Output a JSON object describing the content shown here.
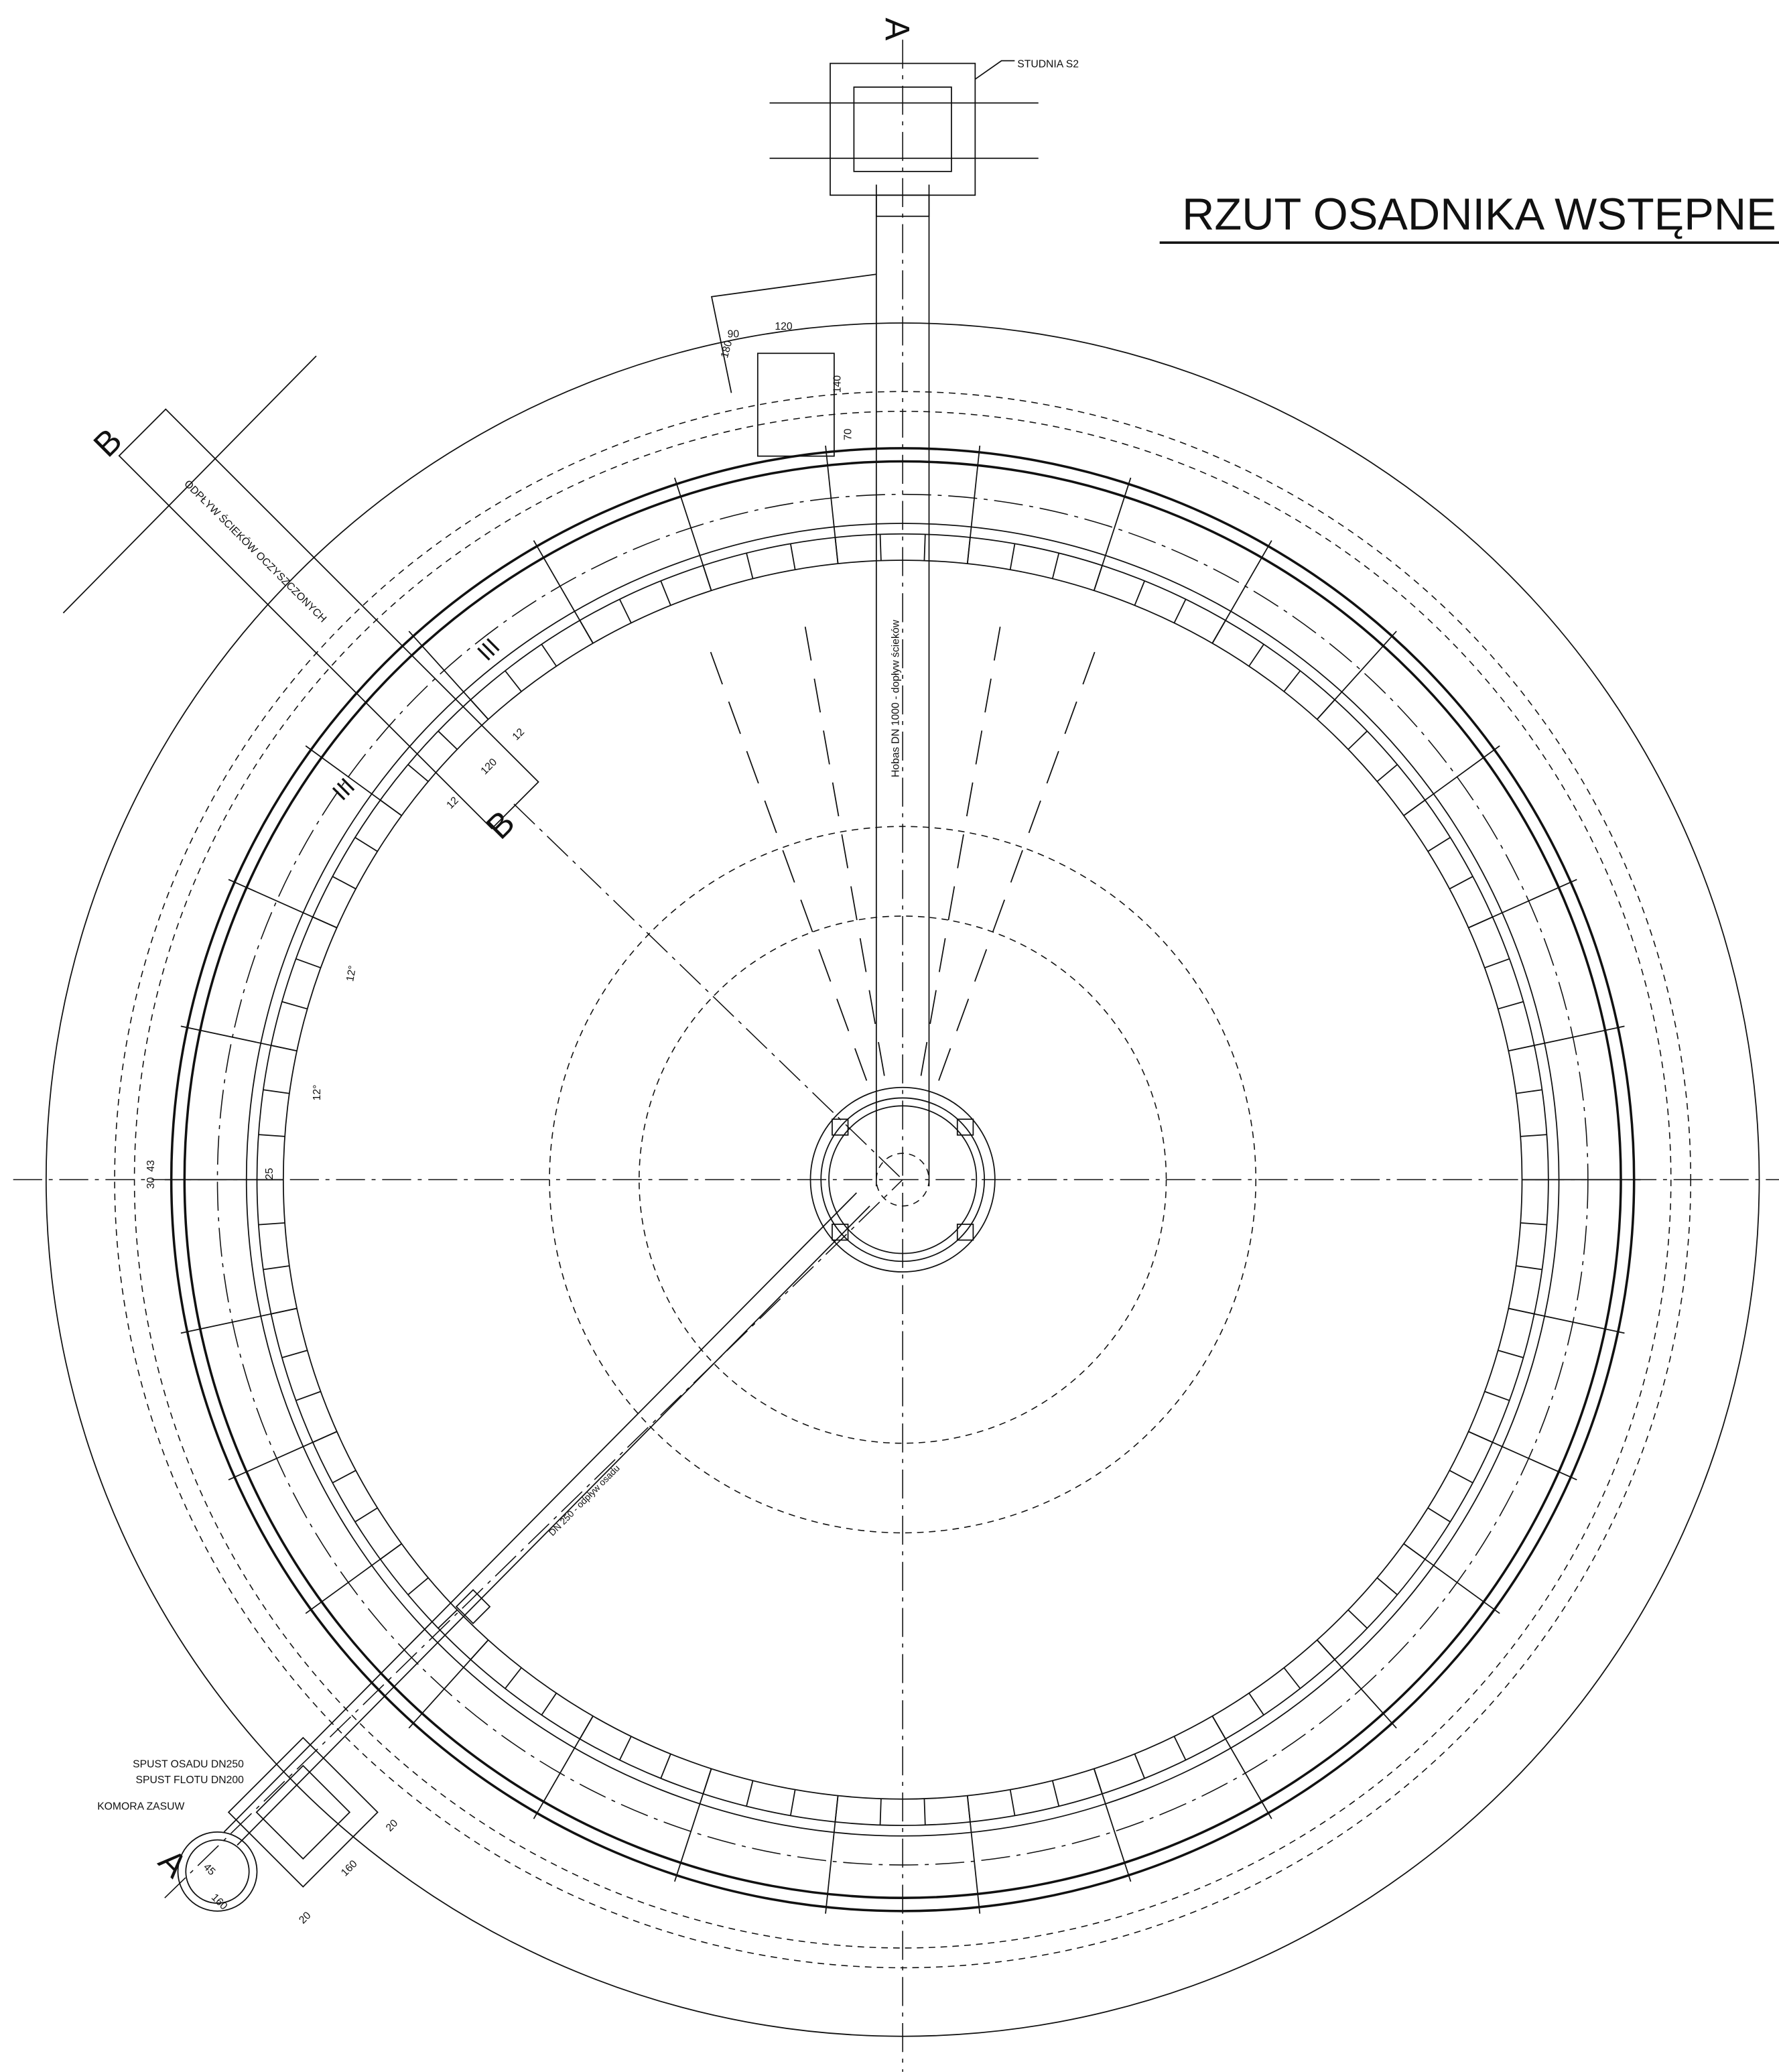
{
  "title": "RZUT OSADNIKA WSTĘPNE",
  "well": "STUDNIA S2",
  "sections": {
    "a_top": "A",
    "a_bottom": "A",
    "b_top": "B",
    "b_mid": "B",
    "iii_1": "III",
    "iii_2": "III"
  },
  "pipes": {
    "inflow": "Hobas DN 1000 - dopływ ścieków",
    "outflow": "ODPŁYW ŚCIEKÓW OCZYSZCZONYCH",
    "sludge_pipe": "DN 250 - odpływ osadu"
  },
  "chamber": {
    "sludge": "SPUST OSADU DN250",
    "float": "SPUST FLOTU DN200",
    "valves": "KOMORA ZASUW"
  },
  "dimensions": {
    "d90": "90",
    "d120a": "120",
    "d180": "180",
    "d140": "140",
    "d70": "70",
    "d12a": "12",
    "d120b": "120",
    "d12b": "12",
    "ang1": "12°",
    "ang2": "12°",
    "d30": "30",
    "d43": "43",
    "d25": "25",
    "d20a": "20",
    "d160a": "160",
    "d20b": "20",
    "d45": "45",
    "d160b": "160"
  }
}
